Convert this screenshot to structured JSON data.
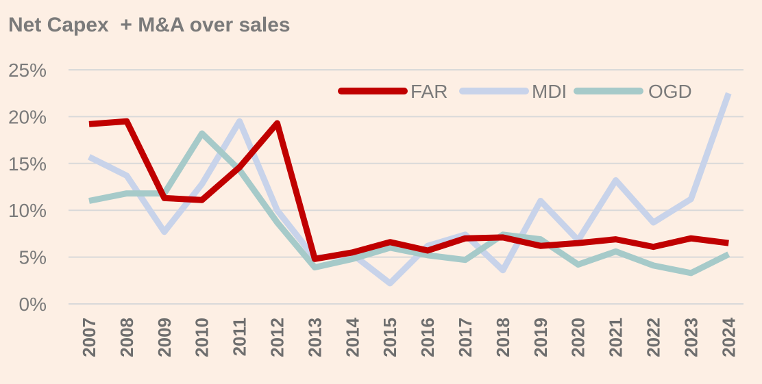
{
  "chart_data": {
    "type": "line",
    "title": "Net Capex  + M&A over sales",
    "xlabel": "",
    "ylabel": "",
    "categories": [
      "2007",
      "2008",
      "2009",
      "2010",
      "2011",
      "2012",
      "2013",
      "2014",
      "2015",
      "2016",
      "2017",
      "2018",
      "2019",
      "2020",
      "2021",
      "2022",
      "2023",
      "2024"
    ],
    "ylim": [
      0,
      25
    ],
    "yticks": [
      0,
      5,
      10,
      15,
      20,
      25
    ],
    "ytick_labels": [
      "0%",
      "5%",
      "10%",
      "15%",
      "20%",
      "25%"
    ],
    "grid": true,
    "legend_position": "top-right",
    "series": [
      {
        "name": "FAR",
        "color": "#c00000",
        "values": [
          19.2,
          19.5,
          11.3,
          11.1,
          14.6,
          19.3,
          4.8,
          5.5,
          6.6,
          5.7,
          7.0,
          7.1,
          6.2,
          6.5,
          6.9,
          6.1,
          7.0,
          6.5
        ]
      },
      {
        "name": "MDI",
        "color": "#c8d3ea",
        "values": [
          15.7,
          13.7,
          7.7,
          12.8,
          19.5,
          10.0,
          4.9,
          5.3,
          2.2,
          6.2,
          7.4,
          3.6,
          11.0,
          6.8,
          13.2,
          8.7,
          11.2,
          22.5
        ]
      },
      {
        "name": "OGD",
        "color": "#a6cac9",
        "values": [
          11.0,
          11.8,
          11.8,
          18.2,
          14.3,
          8.7,
          3.9,
          4.8,
          6.0,
          5.2,
          4.7,
          7.4,
          6.9,
          4.2,
          5.6,
          4.1,
          3.3,
          5.3
        ]
      }
    ]
  }
}
